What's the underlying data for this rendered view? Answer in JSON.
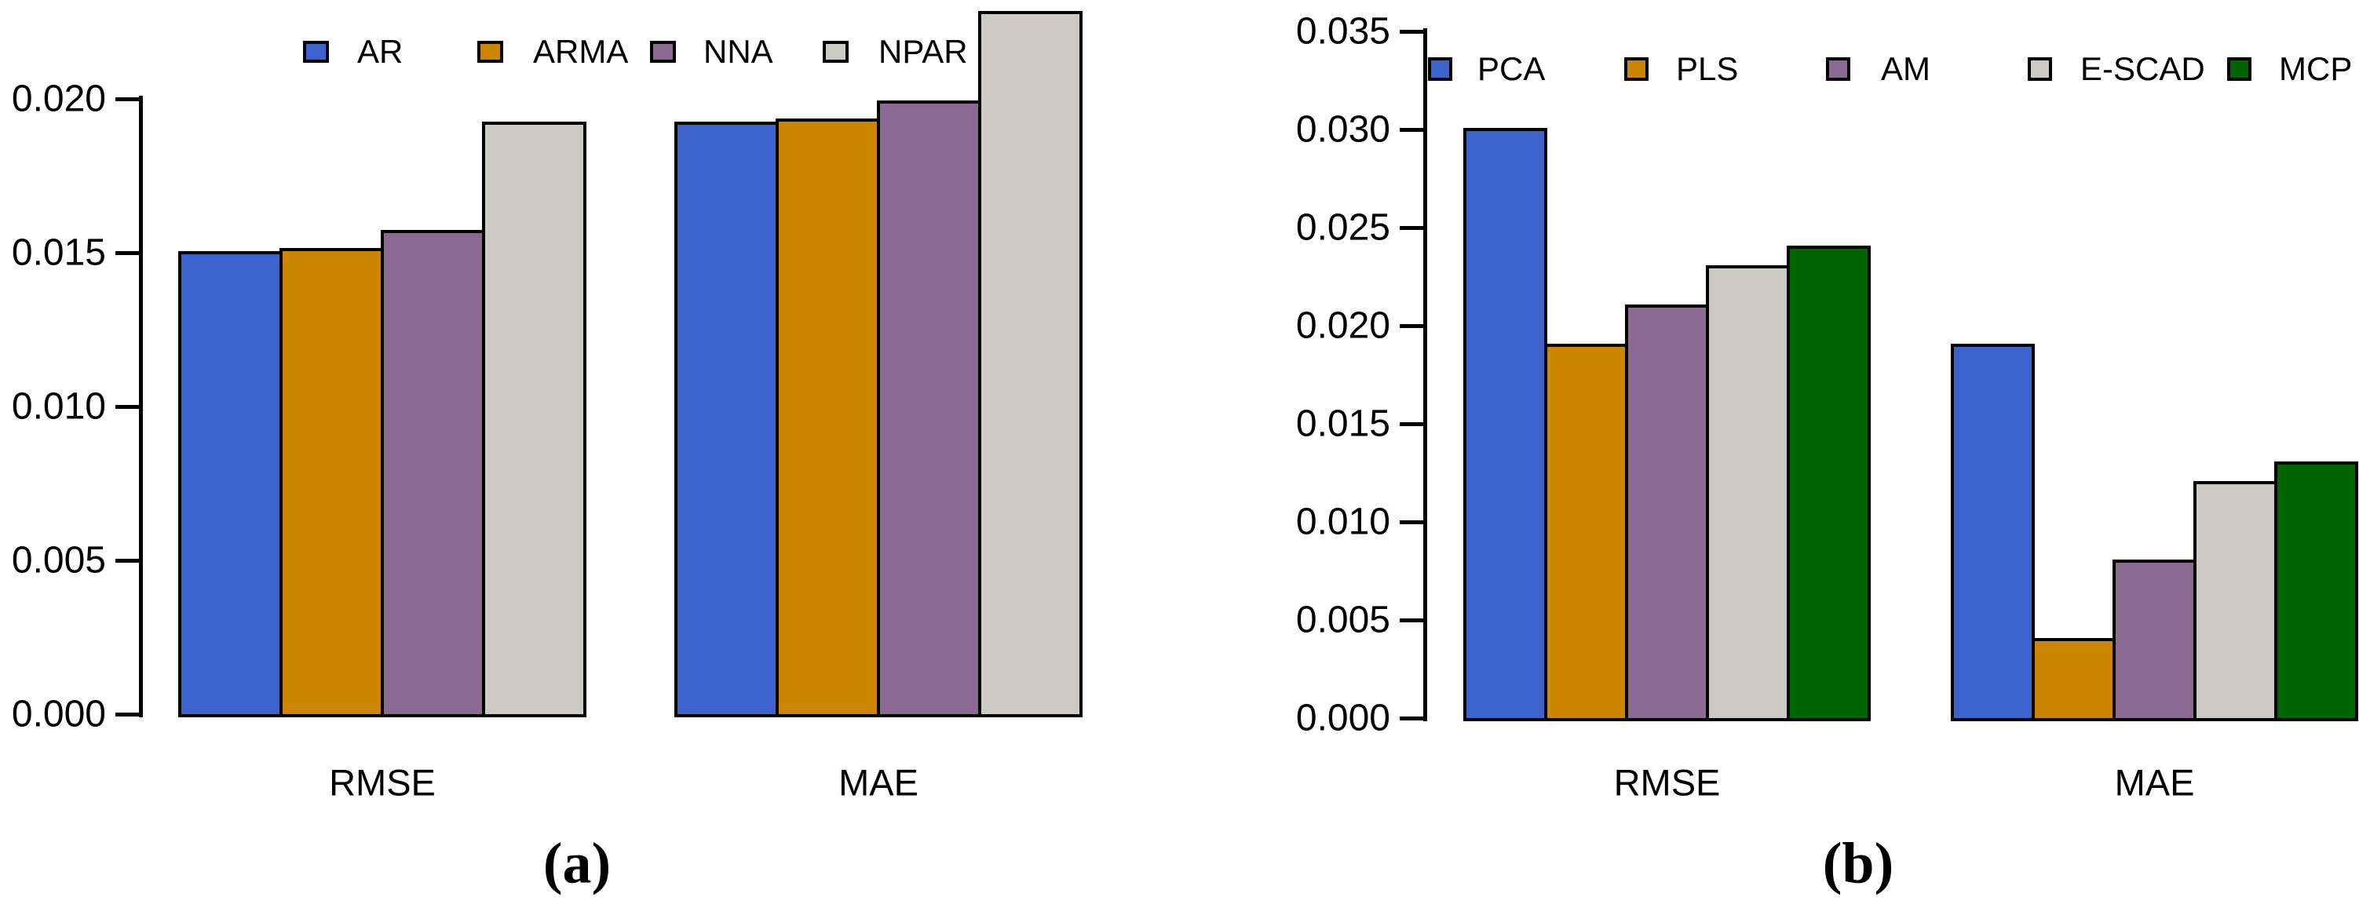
{
  "chart_data": [
    {
      "id": "a",
      "type": "bar",
      "caption": "(a)",
      "categories": [
        "RMSE",
        "MAE"
      ],
      "series": [
        {
          "name": "AR",
          "color": "#3B62CD",
          "values": [
            0.015,
            0.0192
          ]
        },
        {
          "name": "ARMA",
          "color": "#CC8500",
          "values": [
            0.0151,
            0.0193
          ]
        },
        {
          "name": "NNA",
          "color": "#8A6A90",
          "values": [
            0.0157,
            0.0199
          ]
        },
        {
          "name": "NPAR",
          "color": "#CBCBC3",
          "values": [
            0.0192,
            0.0228
          ]
        }
      ],
      "ylim": [
        0,
        0.02
      ],
      "yticks": [
        "0.000",
        "0.005",
        "0.010",
        "0.015",
        "0.020"
      ],
      "xlabel": "",
      "ylabel": "",
      "grid": false,
      "legend_position": "top"
    },
    {
      "id": "b",
      "type": "bar",
      "caption": "(b)",
      "categories": [
        "RMSE",
        "MAE"
      ],
      "series": [
        {
          "name": "PCA",
          "color": "#3B62CD",
          "values": [
            0.03,
            0.019
          ]
        },
        {
          "name": "PLS",
          "color": "#CC8500",
          "values": [
            0.019,
            0.004
          ]
        },
        {
          "name": "AM",
          "color": "#8A6A90",
          "values": [
            0.021,
            0.008
          ]
        },
        {
          "name": "E-SCAD",
          "color": "#CBCBC3",
          "values": [
            0.023,
            0.012
          ]
        },
        {
          "name": "MCP",
          "color": "#006400",
          "values": [
            0.024,
            0.013
          ]
        }
      ],
      "ylim": [
        0,
        0.035
      ],
      "yticks": [
        "0.000",
        "0.005",
        "0.010",
        "0.015",
        "0.020",
        "0.025",
        "0.030",
        "0.035"
      ],
      "xlabel": "",
      "ylabel": "",
      "grid": false,
      "legend_position": "top"
    }
  ]
}
